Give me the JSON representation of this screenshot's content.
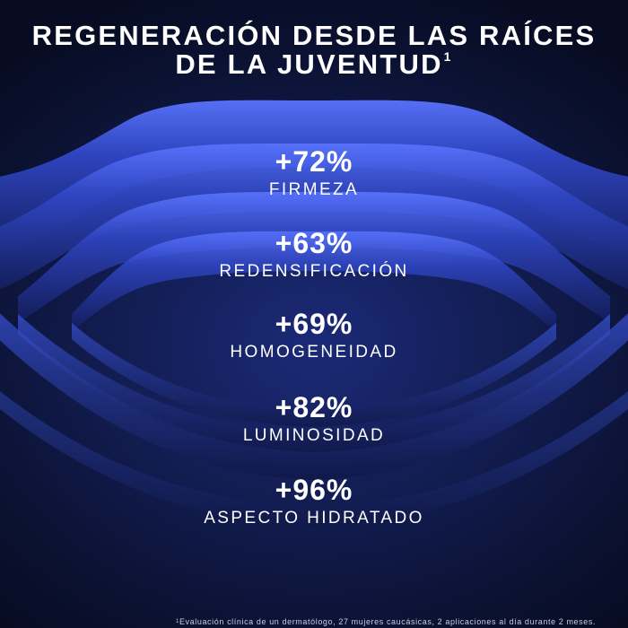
{
  "title": {
    "line1": "REGENERACIÓN DESDE LAS RAÍCES",
    "line2": "DE LA JUVENTUD",
    "sup": "1"
  },
  "stats": [
    {
      "value": "+72%",
      "label": "FIRMEZA"
    },
    {
      "value": "+63%",
      "label": "REDENSIFICACIÓN"
    },
    {
      "value": "+69%",
      "label": "HOMOGENEIDAD"
    },
    {
      "value": "+82%",
      "label": "LUMINOSIDAD"
    },
    {
      "value": "+96%",
      "label": "ASPECTO HIDRATADO"
    }
  ],
  "footnote": {
    "sup": "1",
    "text": "Evaluación clínica de un dermatólogo, 27 mujeres caucásicas, 2 aplicaciones al día durante 2 meses."
  },
  "colors": {
    "background": "#0b1330",
    "rings": "#3550c8",
    "text": "#ffffff"
  }
}
